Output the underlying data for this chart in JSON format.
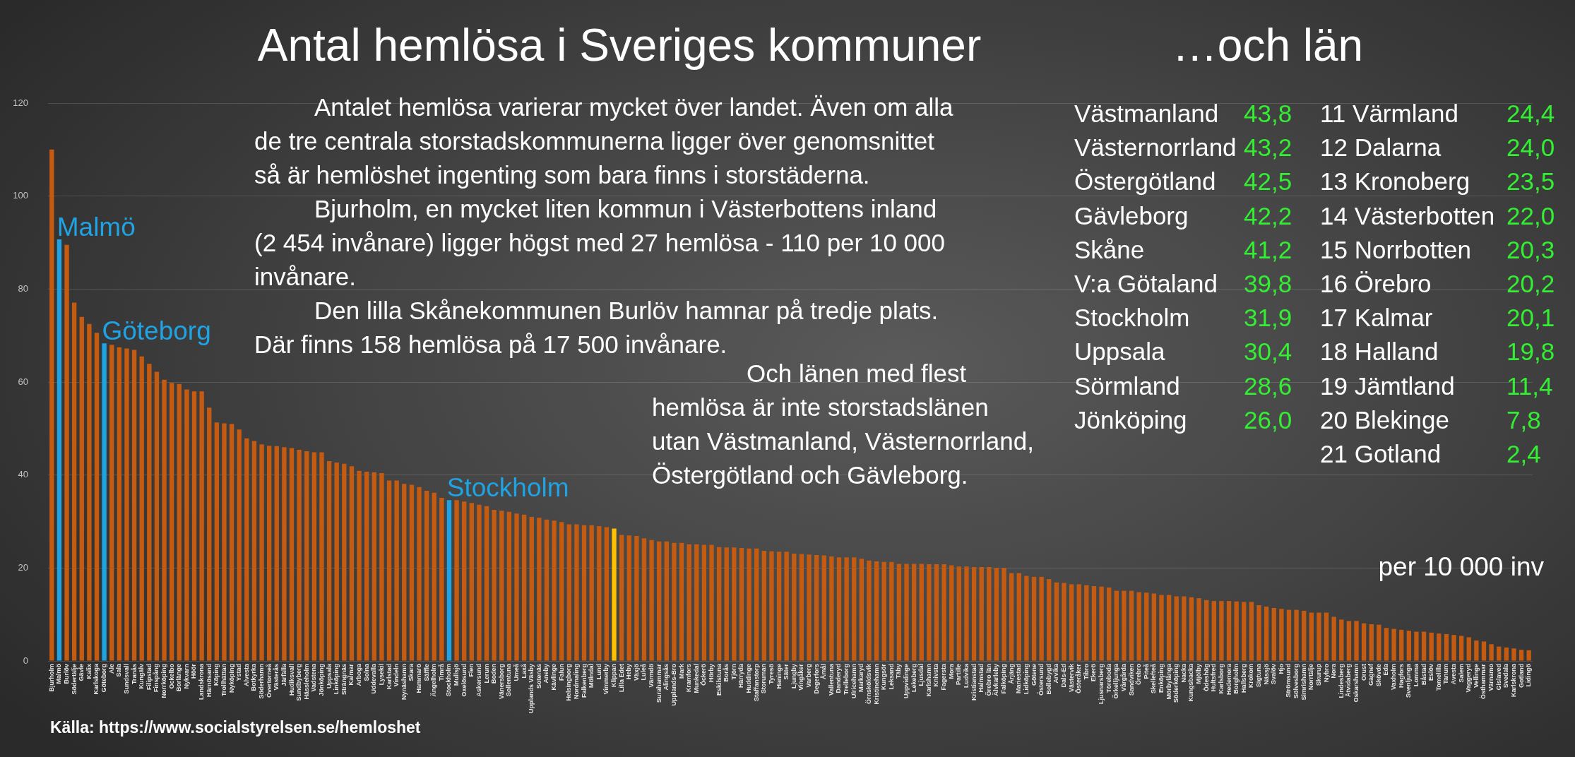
{
  "chart_data": [
    {
      "type": "bar",
      "title": "Antal hemlösa i Sveriges kommuner",
      "categories": [
        "Bjurholm",
        "Malmö",
        "Burlöv",
        "Södertälje",
        "Gävle",
        "Kalix",
        "Karlskoga",
        "Göteborg",
        "Ale",
        "Sala",
        "Sundsvall",
        "Tranås",
        "Kungälv",
        "Filipstad",
        "Finspång",
        "Norrköping",
        "Ockelbo",
        "Borlänge",
        "Nykvarn",
        "Höör",
        "Landskrona",
        "Härnösand",
        "Köping",
        "Trollhättan",
        "Nyköping",
        "Ystad",
        "Alvesta",
        "Botkyrka",
        "Söderhamn",
        "Övertorneå",
        "Västerås",
        "Järfälla",
        "Hudiksvall",
        "Sundbyberg",
        "Hässleholm",
        "Vadstena",
        "Jönköping",
        "Uppsala",
        "Linköping",
        "Strängnäs",
        "Kalmar",
        "Arboga",
        "Solna",
        "Uddevalla",
        "Lysekil",
        "Karlstad",
        "Vindeln",
        "Nynäshamn",
        "Skara",
        "Hammarö",
        "Säffle",
        "Ängelholm",
        "Timrå",
        "Stockholm",
        "Mullsjö",
        "Oxelösund",
        "Flen",
        "Askersund",
        "Lerum",
        "Boden",
        "Vänersborg",
        "Sollentuna",
        "Umeå",
        "Laxå",
        "Upplands Väsby",
        "Sotenäs",
        "Aneby",
        "Kävlinge",
        "Falun",
        "Helsingborg",
        "Nordmaling",
        "Falkenberg",
        "Mölndal",
        "Lund",
        "Vimmerby",
        "Klippan",
        "Lilla Edet",
        "Heby",
        "Växjö",
        "Luleå",
        "Värmdö",
        "Surahammar",
        "Alingsås",
        "Upplands-Bro",
        "Mark",
        "Kramfors",
        "Munkedal",
        "Öckerö",
        "Hörby",
        "Eskilstuna",
        "Borås",
        "Tjörn",
        "Härryda",
        "Huddinge",
        "Staffanstorp",
        "Storuman",
        "Tyresö",
        "Haninge",
        "Säter",
        "Ljungby",
        "Vingåker",
        "Varberg",
        "Degerfors",
        "Åmål",
        "Vallentuna",
        "Danderyd",
        "Trelleborg",
        "Ulricehamn",
        "Markaryd",
        "Örnsköldsvik",
        "Kristinehamn",
        "Kungsör",
        "Leksand",
        "Täby",
        "Uppvidinge",
        "Lekeberg",
        "Ljusdal",
        "Karlshamn",
        "Knivsta",
        "Fagersta",
        "Mora",
        "Partille",
        "Ludvika",
        "Kristianstad",
        "Halmstad",
        "Örebro län",
        "Älvkarleby",
        "Falköping",
        "Årjäng",
        "Mariestad",
        "Lidköping",
        "Götene",
        "Östersund",
        "Bollebygd",
        "Arvika",
        "Dals-Ed",
        "Västervik",
        "Österåker",
        "Tibro",
        "Ekerö",
        "Ljusnarsberg",
        "Töreboda",
        "Örkelljunga",
        "Vårgårda",
        "Sandviken",
        "Örebro",
        "Piteå",
        "Skellefteå",
        "Enköping",
        "Mörbylånga",
        "Söderköping",
        "Nacka",
        "Kungsbacka",
        "Mjölby",
        "Ödeshög",
        "Hultsfred",
        "Karlsborg",
        "Hedemora",
        "Borgholm",
        "Hallsberg",
        "Krokom",
        "Sigtuna",
        "Nässjö",
        "Svalöv",
        "Hjo",
        "Strömsund",
        "Sölvesborg",
        "Simrishamn",
        "Norrtälje",
        "Skurup",
        "Nybro",
        "Nora",
        "Lindesberg",
        "Åtvidaberg",
        "Oskarshamn",
        "Orust",
        "Gagnef",
        "Skövde",
        "Eda",
        "Vaxholm",
        "Hagfors",
        "Svenljunga",
        "Lomma",
        "Båstad",
        "Eslöv",
        "Tomelilla",
        "Tanum",
        "Avesta",
        "Salem",
        "Vaggeryd",
        "Vellinge",
        "Östhammar",
        "Värnamo",
        "Gislaved",
        "Svedala",
        "Karlskrona",
        "Gotland",
        "Lidingö"
      ],
      "values": [
        110,
        90.7,
        89.5,
        77.1,
        74.0,
        72.5,
        70.6,
        68.3,
        68.0,
        67.5,
        67.2,
        66.9,
        65.5,
        63.9,
        62.2,
        60.5,
        59.8,
        59.6,
        58.4,
        58.0,
        58.0,
        54.5,
        51.3,
        51.1,
        51.0,
        49.8,
        47.9,
        47.3,
        46.6,
        46.3,
        46.2,
        46.0,
        45.8,
        45.4,
        45.1,
        44.9,
        44.9,
        43.0,
        42.7,
        42.4,
        41.9,
        40.9,
        40.7,
        40.6,
        40.4,
        38.8,
        38.8,
        38.1,
        37.9,
        37.4,
        36.6,
        36.2,
        35.1,
        34.6,
        34.6,
        34.3,
        34.0,
        33.6,
        33.3,
        32.5,
        32.3,
        32.1,
        31.7,
        31.5,
        31.0,
        30.8,
        30.4,
        30.2,
        29.9,
        29.4,
        29.4,
        29.2,
        29.2,
        29.0,
        28.8,
        28.5,
        27.1,
        27.0,
        26.9,
        26.4,
        26.0,
        25.7,
        25.7,
        25.4,
        25.4,
        25.1,
        25.1,
        25.0,
        25.0,
        24.5,
        24.4,
        24.4,
        24.3,
        24.2,
        24.2,
        23.7,
        23.6,
        23.5,
        23.5,
        23.1,
        23.0,
        22.9,
        22.8,
        22.7,
        22.5,
        22.3,
        22.3,
        22.3,
        22.0,
        21.6,
        21.4,
        21.3,
        21.3,
        20.9,
        20.9,
        20.9,
        20.9,
        20.8,
        20.8,
        20.8,
        20.6,
        20.3,
        20.3,
        20.2,
        20.2,
        20.2,
        20.0,
        20.0,
        18.9,
        18.9,
        18.3,
        18.1,
        18.1,
        17.6,
        16.9,
        16.8,
        16.5,
        16.5,
        16.3,
        16.1,
        16.0,
        15.8,
        15.1,
        15.1,
        15.1,
        14.8,
        14.7,
        14.5,
        14.2,
        14.2,
        13.9,
        13.9,
        13.7,
        13.5,
        13.1,
        12.9,
        12.9,
        12.9,
        12.8,
        12.7,
        12.7,
        12.0,
        11.7,
        11.4,
        11.2,
        11.0,
        11.0,
        10.8,
        10.4,
        10.4,
        10.4,
        9.5,
        8.9,
        8.6,
        8.6,
        8.1,
        7.9,
        7.8,
        7.1,
        6.9,
        6.7,
        6.5,
        6.3,
        6.3,
        6.1,
        5.9,
        5.8,
        5.6,
        5.4,
        5.1,
        4.4,
        4.2,
        3.6,
        3.1,
        2.9,
        2.7,
        2.4,
        2.3
      ],
      "colors": [
        "#c55a11",
        "#1fa3e3",
        "#c55a11",
        "#c55a11",
        "#c55a11",
        "#c55a11",
        "#c55a11",
        "#1fa3e3",
        "#c55a11",
        "#c55a11",
        "#c55a11",
        "#c55a11",
        "#c55a11",
        "#c55a11",
        "#c55a11",
        "#c55a11",
        "#c55a11",
        "#c55a11",
        "#c55a11",
        "#c55a11",
        "#c55a11",
        "#c55a11",
        "#c55a11",
        "#c55a11",
        "#c55a11",
        "#c55a11",
        "#c55a11",
        "#c55a11",
        "#c55a11",
        "#c55a11",
        "#c55a11",
        "#c55a11",
        "#c55a11",
        "#c55a11",
        "#c55a11",
        "#c55a11",
        "#c55a11",
        "#c55a11",
        "#c55a11",
        "#c55a11",
        "#c55a11",
        "#c55a11",
        "#c55a11",
        "#c55a11",
        "#c55a11",
        "#c55a11",
        "#c55a11",
        "#c55a11",
        "#c55a11",
        "#c55a11",
        "#c55a11",
        "#c55a11",
        "#c55a11",
        "#1fa3e3",
        "#c55a11",
        "#c55a11",
        "#c55a11",
        "#c55a11",
        "#c55a11",
        "#c55a11",
        "#c55a11",
        "#c55a11",
        "#c55a11",
        "#c55a11",
        "#c55a11",
        "#c55a11",
        "#c55a11",
        "#c55a11",
        "#c55a11",
        "#c55a11",
        "#c55a11",
        "#c55a11",
        "#c55a11",
        "#c55a11",
        "#c55a11",
        "#ffc000",
        "#c55a11",
        "#c55a11",
        "#c55a11",
        "#c55a11",
        "#c55a11",
        "#c55a11",
        "#c55a11",
        "#c55a11",
        "#c55a11",
        "#c55a11",
        "#c55a11",
        "#c55a11",
        "#c55a11",
        "#c55a11",
        "#c55a11",
        "#c55a11",
        "#c55a11",
        "#c55a11",
        "#c55a11",
        "#c55a11",
        "#c55a11",
        "#c55a11",
        "#c55a11",
        "#c55a11",
        "#c55a11",
        "#c55a11",
        "#c55a11",
        "#c55a11",
        "#c55a11",
        "#c55a11",
        "#c55a11",
        "#c55a11",
        "#c55a11",
        "#c55a11",
        "#c55a11",
        "#c55a11",
        "#c55a11",
        "#c55a11",
        "#c55a11",
        "#c55a11",
        "#c55a11",
        "#c55a11",
        "#c55a11",
        "#c55a11",
        "#c55a11",
        "#c55a11",
        "#c55a11",
        "#c55a11",
        "#c55a11",
        "#c55a11",
        "#c55a11",
        "#c55a11",
        "#c55a11",
        "#c55a11",
        "#c55a11",
        "#c55a11",
        "#c55a11",
        "#c55a11",
        "#c55a11",
        "#c55a11",
        "#c55a11",
        "#c55a11",
        "#c55a11",
        "#c55a11",
        "#c55a11",
        "#c55a11",
        "#c55a11",
        "#c55a11",
        "#c55a11",
        "#c55a11",
        "#c55a11",
        "#c55a11",
        "#c55a11",
        "#c55a11",
        "#c55a11",
        "#c55a11",
        "#c55a11",
        "#c55a11",
        "#c55a11",
        "#c55a11",
        "#c55a11",
        "#c55a11",
        "#c55a11",
        "#c55a11",
        "#c55a11",
        "#c55a11",
        "#c55a11",
        "#c55a11",
        "#c55a11",
        "#c55a11",
        "#c55a11",
        "#c55a11",
        "#c55a11",
        "#c55a11",
        "#c55a11",
        "#c55a11",
        "#c55a11",
        "#c55a11",
        "#c55a11",
        "#c55a11",
        "#c55a11",
        "#c55a11",
        "#c55a11",
        "#c55a11",
        "#c55a11",
        "#c55a11",
        "#c55a11",
        "#c55a11",
        "#c55a11",
        "#c55a11",
        "#c55a11",
        "#c55a11",
        "#c55a11",
        "#c55a11",
        "#c55a11",
        "#c55a11",
        "#c55a11",
        "#c55a11",
        "#c55a11",
        "#c55a11",
        "#c55a11",
        "#c55a11"
      ],
      "ylim": [
        0,
        120
      ],
      "yticks": [
        0,
        20,
        40,
        60,
        80,
        100,
        120
      ],
      "grid": "y",
      "annotations": [
        "Antalet hemlösa varierar mycket över landet. Även om alla\nde tre centrala storstadskommunerna ligger över genomsnittet\nså är hemlöshet ingenting som bara finns i storstäderna.",
        "Bjurholm, en mycket liten kommun i Västerbottens inland\n(2 454 invånare) ligger högst med 27 hemlösa - 110 per 10 000\ninvånare.",
        "Den lilla Skånekommunen Burlöv hamnar på tredje plats.\nDär finns 158 hemlösa på 17 500 invånare.",
        "Och länen med flest\nhemlösa är inte storstadslänen\nutan Västmanland, Västernorrland,\nÖstergötland och Gävleborg.",
        "per 10 000 inv",
        "Källa: https://www.socialstyrelsen.se/hemloshet",
        {
          "text": "Malmö",
          "x": "Malmö",
          "y": 90.7
        },
        {
          "text": "Göteborg",
          "x": "Göteborg",
          "y": 68.3
        },
        {
          "text": "Stockholm",
          "x": "Stockholm",
          "y": 34.6
        }
      ]
    },
    {
      "type": "other",
      "title": "…och län",
      "annotations": [
        "Västmanland",
        "43,8",
        "Västernorrland",
        "43,2",
        "Östergötland",
        "42,5",
        "Gävleborg",
        "42,2",
        "Skåne",
        "41,2",
        "V:a Götaland",
        "39,8",
        "Stockholm",
        "31,9",
        "Uppsala",
        "30,4",
        "Sörmland",
        "28,6",
        "Jönköping",
        "26,0",
        "11 Värmland",
        "24,4",
        "12 Dalarna",
        "24,0",
        "13 Kronoberg",
        "23,5",
        "14 Västerbotten",
        "22,0",
        "15 Norrbotten",
        "20,3",
        "16 Örebro",
        "20,2",
        "17 Kalmar",
        "20,1",
        "18 Halland",
        "19,8",
        "19 Jämtland",
        "11,4",
        "20 Blekinge",
        "7,8",
        "21 Gotland",
        "2,4"
      ]
    }
  ]
}
